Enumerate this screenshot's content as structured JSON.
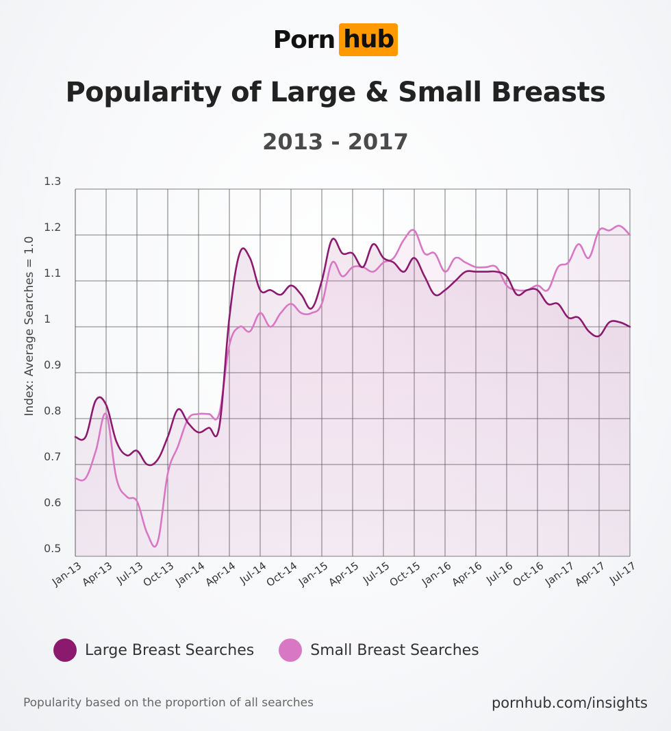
{
  "brand": {
    "part1": "Porn",
    "part2": "hub"
  },
  "footer": {
    "note": "Popularity based on the proportion of all searches",
    "url": "pornhub.com/insights"
  },
  "chart_data": {
    "type": "line",
    "title": "Popularity of Large & Small Breasts",
    "subtitle": "2013 - 2017",
    "xlabel": "",
    "ylabel": "Index: Average Searches = 1.0",
    "ylim": [
      0.5,
      1.3
    ],
    "yticks": [
      "0.5",
      "0.6",
      "0.7",
      "0.8",
      "0.9",
      "1",
      "1.1",
      "1.2",
      "1.3"
    ],
    "grid": true,
    "legend_position": "bottom-left",
    "categories": [
      "Jan-13",
      "Feb-13",
      "Mar-13",
      "Apr-13",
      "May-13",
      "Jun-13",
      "Jul-13",
      "Aug-13",
      "Sep-13",
      "Oct-13",
      "Nov-13",
      "Dec-13",
      "Jan-14",
      "Feb-14",
      "Mar-14",
      "Apr-14",
      "May-14",
      "Jun-14",
      "Jul-14",
      "Aug-14",
      "Sep-14",
      "Oct-14",
      "Nov-14",
      "Dec-14",
      "Jan-15",
      "Feb-15",
      "Mar-15",
      "Apr-15",
      "May-15",
      "Jun-15",
      "Jul-15",
      "Aug-15",
      "Sep-15",
      "Oct-15",
      "Nov-15",
      "Dec-15",
      "Jan-16",
      "Feb-16",
      "Mar-16",
      "Apr-16",
      "May-16",
      "Jun-16",
      "Jul-16",
      "Aug-16",
      "Sep-16",
      "Oct-16",
      "Nov-16",
      "Dec-16",
      "Jan-17",
      "Feb-17",
      "Mar-17",
      "Apr-17",
      "May-17",
      "Jun-17",
      "Jul-17"
    ],
    "tick_labels": [
      "Jan-13",
      "Apr-13",
      "Jul-13",
      "Oct-13",
      "Jan-14",
      "Apr-14",
      "Jul-14",
      "Oct-14",
      "Jan-15",
      "Apr-15",
      "Jul-15",
      "Oct-15",
      "Jan-16",
      "Apr-16",
      "Jul-16",
      "Oct-16",
      "Jan-17",
      "Apr-17",
      "Jul-17"
    ],
    "series": [
      {
        "name": "Large Breast Searches",
        "color": "#8b1a6e",
        "values": [
          0.76,
          0.76,
          0.84,
          0.83,
          0.75,
          0.72,
          0.73,
          0.7,
          0.71,
          0.76,
          0.82,
          0.79,
          0.77,
          0.78,
          0.78,
          1.02,
          1.16,
          1.15,
          1.08,
          1.08,
          1.07,
          1.09,
          1.07,
          1.04,
          1.1,
          1.19,
          1.16,
          1.16,
          1.13,
          1.18,
          1.15,
          1.14,
          1.12,
          1.15,
          1.11,
          1.07,
          1.08,
          1.1,
          1.12,
          1.12,
          1.12,
          1.12,
          1.11,
          1.07,
          1.08,
          1.08,
          1.05,
          1.05,
          1.02,
          1.02,
          0.99,
          0.98,
          1.01,
          1.01,
          1.0
        ]
      },
      {
        "name": "Small Breast Searches",
        "color": "#d877c3",
        "values": [
          0.67,
          0.67,
          0.73,
          0.81,
          0.67,
          0.63,
          0.62,
          0.55,
          0.53,
          0.68,
          0.74,
          0.8,
          0.81,
          0.81,
          0.81,
          0.96,
          1.0,
          0.99,
          1.03,
          1.0,
          1.03,
          1.05,
          1.03,
          1.03,
          1.05,
          1.14,
          1.11,
          1.13,
          1.13,
          1.12,
          1.14,
          1.15,
          1.19,
          1.21,
          1.16,
          1.16,
          1.12,
          1.15,
          1.14,
          1.13,
          1.13,
          1.13,
          1.09,
          1.08,
          1.08,
          1.09,
          1.08,
          1.13,
          1.14,
          1.18,
          1.15,
          1.21,
          1.21,
          1.22,
          1.2
        ]
      }
    ]
  }
}
